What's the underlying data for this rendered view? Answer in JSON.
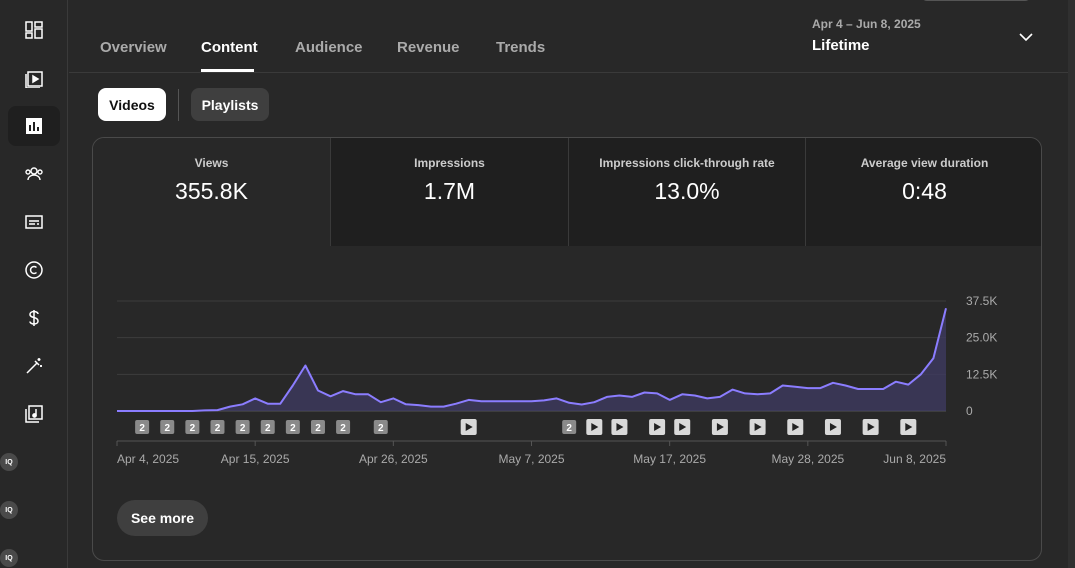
{
  "sidebar": {
    "items": [
      {
        "icon": "dashboard-icon",
        "active": false
      },
      {
        "icon": "content-icon",
        "active": false
      },
      {
        "icon": "analytics-icon",
        "active": true
      },
      {
        "icon": "community-icon",
        "active": false
      },
      {
        "icon": "subtitles-icon",
        "active": false
      },
      {
        "icon": "copyright-icon",
        "active": false
      },
      {
        "icon": "earn-icon",
        "active": false
      },
      {
        "icon": "customization-icon",
        "active": false
      },
      {
        "icon": "audio-library-icon",
        "active": false
      }
    ],
    "extensions": [
      "IQ",
      "IQ",
      "IQ"
    ]
  },
  "tabs": [
    {
      "label": "Overview",
      "active": false
    },
    {
      "label": "Content",
      "active": true
    },
    {
      "label": "Audience",
      "active": false
    },
    {
      "label": "Revenue",
      "active": false
    },
    {
      "label": "Trends",
      "active": false
    }
  ],
  "date_range": {
    "range": "Apr 4 – Jun 8, 2025",
    "label": "Lifetime"
  },
  "chips": {
    "videos": "Videos",
    "playlists": "Playlists"
  },
  "metrics": [
    {
      "label": "Views",
      "value": "355.8K"
    },
    {
      "label": "Impressions",
      "value": "1.7M"
    },
    {
      "label": "Impressions click-through rate",
      "value": "13.0%"
    },
    {
      "label": "Average view duration",
      "value": "0:48"
    }
  ],
  "chart_data": {
    "type": "area",
    "series_name": "Views",
    "ylim": [
      0,
      37500
    ],
    "y_ticks": [
      "37.5K",
      "25.0K",
      "12.5K",
      "0"
    ],
    "x_labels": [
      "Apr 4, 2025",
      "Apr 15, 2025",
      "Apr 26, 2025",
      "May 7, 2025",
      "May 17, 2025",
      "May 28, 2025",
      "Jun 8, 2025"
    ],
    "start_date": "2025-04-04",
    "values": [
      0,
      0,
      0,
      0,
      0,
      0,
      0,
      200,
      300,
      1500,
      2300,
      4300,
      2500,
      2500,
      8700,
      15500,
      7000,
      5000,
      6800,
      5700,
      5700,
      3000,
      4300,
      2300,
      2000,
      1500,
      1500,
      2500,
      3800,
      3300,
      3300,
      3300,
      3300,
      3300,
      3600,
      4300,
      2800,
      2200,
      3000,
      4800,
      5300,
      4800,
      6300,
      6000,
      3800,
      5700,
      5300,
      4300,
      4800,
      7300,
      6000,
      5700,
      6000,
      8700,
      8300,
      7800,
      7800,
      9600,
      8700,
      7500,
      7500,
      7500,
      10000,
      9000,
      12500,
      18000,
      35000
    ],
    "markers": [
      {
        "type": "count",
        "label": "2",
        "date": "2025-04-06"
      },
      {
        "type": "count",
        "label": "2",
        "date": "2025-04-08"
      },
      {
        "type": "count",
        "label": "2",
        "date": "2025-04-10"
      },
      {
        "type": "count",
        "label": "2",
        "date": "2025-04-12"
      },
      {
        "type": "count",
        "label": "2",
        "date": "2025-04-14"
      },
      {
        "type": "count",
        "label": "2",
        "date": "2025-04-16"
      },
      {
        "type": "count",
        "label": "2",
        "date": "2025-04-18"
      },
      {
        "type": "count",
        "label": "2",
        "date": "2025-04-20"
      },
      {
        "type": "count",
        "label": "2",
        "date": "2025-04-22"
      },
      {
        "type": "count",
        "label": "2",
        "date": "2025-04-25"
      },
      {
        "type": "video",
        "label": "",
        "date": "2025-05-02"
      },
      {
        "type": "count",
        "label": "2",
        "date": "2025-05-10"
      },
      {
        "type": "video",
        "label": "",
        "date": "2025-05-12"
      },
      {
        "type": "video",
        "label": "",
        "date": "2025-05-14"
      },
      {
        "type": "video",
        "label": "",
        "date": "2025-05-17"
      },
      {
        "type": "video",
        "label": "",
        "date": "2025-05-19"
      },
      {
        "type": "video",
        "label": "",
        "date": "2025-05-22"
      },
      {
        "type": "video",
        "label": "",
        "date": "2025-05-25"
      },
      {
        "type": "video",
        "label": "",
        "date": "2025-05-28"
      },
      {
        "type": "video",
        "label": "",
        "date": "2025-05-31"
      },
      {
        "type": "video",
        "label": "",
        "date": "2025-06-03"
      },
      {
        "type": "video",
        "label": "",
        "date": "2025-06-06"
      }
    ],
    "colors": {
      "line": "#8b7dff",
      "fill": "#3f3b63",
      "grid": "#3d3d3d"
    }
  },
  "see_more": "See more"
}
